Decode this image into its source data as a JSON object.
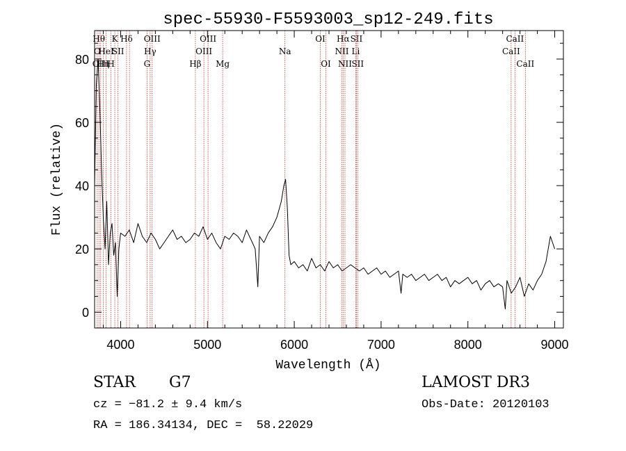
{
  "chart_data": {
    "type": "line",
    "title": "spec-55930-F5593003_sp12-249.fits",
    "xlabel": "Wavelength (Å)",
    "ylabel": "Flux (relative)",
    "xlim": [
      3700,
      9100
    ],
    "ylim": [
      -5,
      89
    ],
    "x_ticks": [
      4000,
      5000,
      6000,
      7000,
      8000,
      9000
    ],
    "y_ticks": [
      0,
      20,
      40,
      60,
      80
    ],
    "grid": false,
    "line_color": "#000000",
    "marker_color": "#c0392b",
    "series": [
      {
        "x": [
          3700,
          3720,
          3740,
          3760,
          3780,
          3800,
          3820,
          3840,
          3860,
          3880,
          3900,
          3920,
          3940,
          3960,
          3980,
          4000,
          4050,
          4100,
          4150,
          4200,
          4250,
          4300,
          4350,
          4400,
          4450,
          4500,
          4550,
          4600,
          4650,
          4700,
          4750,
          4800,
          4850,
          4900,
          4950,
          5000,
          5050,
          5100,
          5150,
          5200,
          5250,
          5300,
          5350,
          5400,
          5450,
          5500,
          5550,
          5580,
          5600,
          5650,
          5700,
          5750,
          5800,
          5850,
          5880,
          5900,
          5920,
          5940,
          5960,
          6000,
          6050,
          6100,
          6150,
          6200,
          6250,
          6300,
          6350,
          6400,
          6450,
          6500,
          6550,
          6600,
          6650,
          6700,
          6750,
          6800,
          6850,
          6900,
          6950,
          7000,
          7050,
          7100,
          7150,
          7200,
          7230,
          7250,
          7300,
          7350,
          7400,
          7450,
          7500,
          7550,
          7600,
          7650,
          7700,
          7750,
          7800,
          7850,
          7900,
          7950,
          8000,
          8050,
          8100,
          8150,
          8200,
          8250,
          8300,
          8350,
          8400,
          8430,
          8450,
          8500,
          8550,
          8600,
          8650,
          8700,
          8750,
          8800,
          8850,
          8900,
          8950,
          9000
        ],
        "values": [
          40,
          72,
          80,
          65,
          45,
          30,
          20,
          35,
          15,
          25,
          28,
          18,
          22,
          5,
          20,
          25,
          24,
          26,
          22,
          28,
          24,
          22,
          25,
          23,
          20,
          22,
          24,
          26,
          23,
          24,
          22,
          23,
          25,
          24,
          27,
          23,
          25,
          22,
          20,
          24,
          23,
          25,
          24,
          22,
          26,
          23,
          20,
          8,
          24,
          22,
          25,
          27,
          30,
          35,
          40,
          42,
          33,
          18,
          15,
          16,
          14,
          15,
          13,
          17,
          14,
          15,
          13,
          16,
          14,
          15,
          13,
          14,
          15,
          14,
          13,
          14,
          12,
          13,
          14,
          12,
          13,
          11,
          12,
          13,
          6,
          12,
          11,
          12,
          10,
          11,
          12,
          10,
          11,
          12,
          10,
          11,
          8,
          10,
          9,
          10,
          11,
          9,
          10,
          7,
          9,
          10,
          8,
          9,
          8,
          1,
          10,
          6,
          8,
          11,
          5,
          9,
          7,
          10,
          12,
          16,
          24,
          20
        ]
      }
    ],
    "line_markers": [
      {
        "x": 3730,
        "label": "O",
        "row": 1
      },
      {
        "x": 3750,
        "label": "Hθ",
        "row": 0
      },
      {
        "x": 3770,
        "label": "OIII",
        "row": 2
      },
      {
        "x": 3800,
        "label": "Hη",
        "row": 2
      },
      {
        "x": 3833,
        "label": "HeI",
        "row": 1
      },
      {
        "x": 3889,
        "label": "H",
        "row": 2
      },
      {
        "x": 3933,
        "label": "K",
        "row": 0
      },
      {
        "x": 3970,
        "label": "SII",
        "row": 1
      },
      {
        "x": 4068,
        "label": "Hδ",
        "row": 0
      },
      {
        "x": 4102,
        "label": "",
        "row": 0
      },
      {
        "x": 4304,
        "label": "G",
        "row": 2
      },
      {
        "x": 4340,
        "label": "Hγ",
        "row": 1
      },
      {
        "x": 4363,
        "label": "OIII",
        "row": 0
      },
      {
        "x": 4861,
        "label": "Hβ",
        "row": 2
      },
      {
        "x": 4959,
        "label": "OIII",
        "row": 1
      },
      {
        "x": 5007,
        "label": "OIII",
        "row": 0
      },
      {
        "x": 5175,
        "label": "Mg",
        "row": 2
      },
      {
        "x": 5893,
        "label": "Na",
        "row": 1
      },
      {
        "x": 6300,
        "label": "OI",
        "row": 0
      },
      {
        "x": 6364,
        "label": "OI",
        "row": 2
      },
      {
        "x": 6548,
        "label": "NII",
        "row": 1
      },
      {
        "x": 6563,
        "label": "Hα",
        "row": 0
      },
      {
        "x": 6584,
        "label": "NII",
        "row": 2
      },
      {
        "x": 6708,
        "label": "Li",
        "row": 1
      },
      {
        "x": 6716,
        "label": "SII",
        "row": 0
      },
      {
        "x": 6731,
        "label": "SII",
        "row": 2
      },
      {
        "x": 8498,
        "label": "CaII",
        "row": 1
      },
      {
        "x": 8542,
        "label": "CaII",
        "row": 0
      },
      {
        "x": 8662,
        "label": "CaII",
        "row": 2
      }
    ]
  },
  "info": {
    "class": "STAR",
    "subclass": "G7",
    "cz": "cz = −81.2 ± 9.4 km/s",
    "coords": "RA = 186.34134, DEC =  58.22029",
    "survey": "LAMOST DR3",
    "obs_date": "Obs-Date: 20120103"
  }
}
